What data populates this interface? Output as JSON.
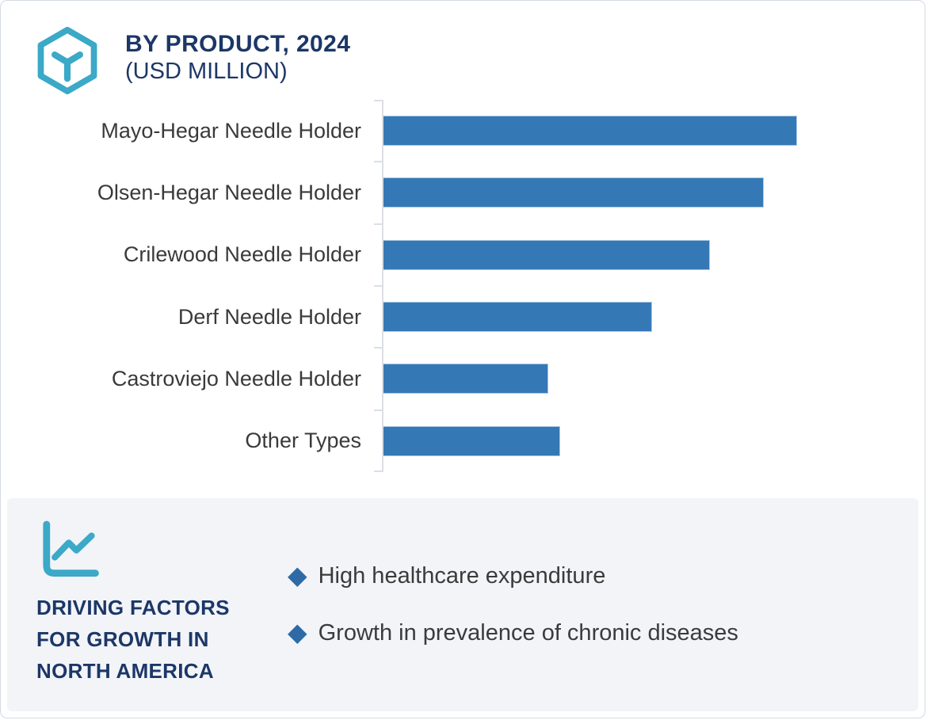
{
  "header": {
    "title": "BY PRODUCT, 2024",
    "subtitle": "(USD MILLION)"
  },
  "chart_data": {
    "type": "bar",
    "orientation": "horizontal",
    "title": "BY PRODUCT, 2024 (USD MILLION)",
    "categories": [
      "Mayo-Hegar Needle Holder",
      "Olsen-Hegar Needle Holder",
      "Crilewood Needle Holder",
      "Derf Needle Holder",
      "Castroviejo Needle Holder",
      "Other Types"
    ],
    "values_relative": [
      100,
      92,
      79,
      65,
      40,
      43
    ],
    "value_note": "No numeric axis labels shown; bar values estimated relative to longest bar = 100 (units: USD Million)",
    "xlim": [
      0,
      130
    ],
    "grid": false,
    "legend": "none",
    "bar_color": "#3578B6"
  },
  "driving_factors": {
    "icon": "line-chart-icon",
    "title": "DRIVING FACTORS FOR GROWTH IN NORTH AMERICA",
    "bullet_marker": "◆",
    "items": [
      "High healthcare expenditure",
      "Growth in prevalence of chronic diseases"
    ]
  },
  "colors": {
    "accent_teal": "#3BA9C7",
    "navy_heading": "#1C3767",
    "bar_fill": "#3578B6",
    "bar_outline": "#A9C7E2",
    "diamond_bullet": "#2E6BA6",
    "body_text": "#3A3A3A",
    "panel_background": "#F2F4F8",
    "card_border": "#D5D9E2",
    "axis_gray": "#DCDFE5"
  }
}
